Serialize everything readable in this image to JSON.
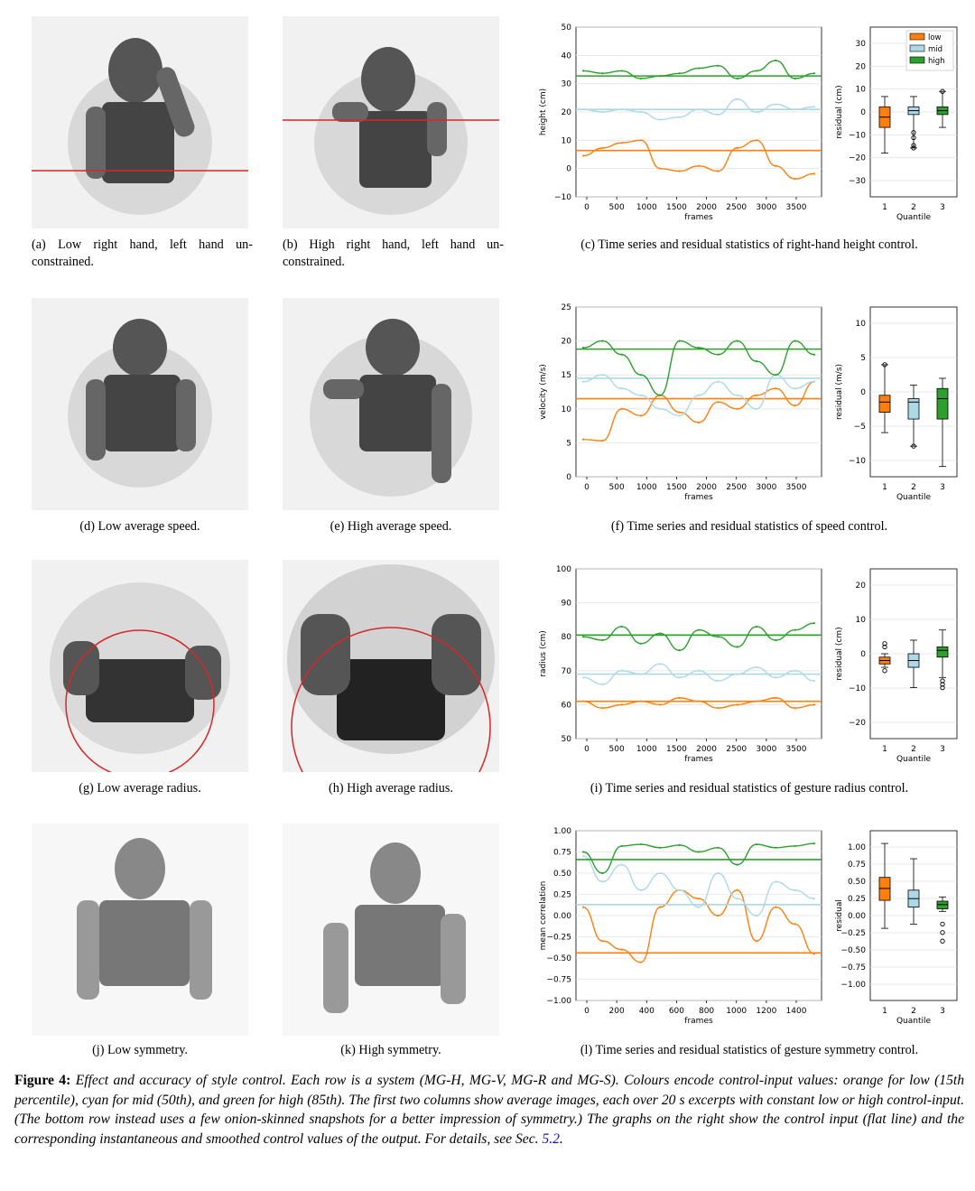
{
  "colors": {
    "low": "#ff7f0e",
    "mid": "#add8e6",
    "high": "#2ca02c",
    "red_line": "#d62728"
  },
  "rows": [
    {
      "cap_a": "(a)  Low right hand, left hand un-constrained.",
      "cap_b": "(b)  High right hand, left hand un-constrained.",
      "cap_c": "(c)  Time series and residual statistics of right-hand height control.",
      "ts_ylabel": "height (cm)",
      "ts_xlabel": "frames",
      "ts_yticks": [
        "50",
        "40",
        "30",
        "20",
        "10",
        "0",
        "−10"
      ],
      "ts_xticks": [
        "0",
        "500",
        "1000",
        "1500",
        "2000",
        "2500",
        "3000",
        "3500"
      ],
      "box_ylabel": "residual (cm)",
      "box_xlabel": "Quantile",
      "box_yticks": [
        "30",
        "20",
        "10",
        "0",
        "−10",
        "−20",
        "−30"
      ],
      "box_xticks": [
        "1",
        "2",
        "3"
      ],
      "legend": [
        "low",
        "mid",
        "high"
      ]
    },
    {
      "cap_a": "(d)  Low average speed.",
      "cap_b": "(e)  High average speed.",
      "cap_c": "(f)  Time series and residual statistics of speed control.",
      "ts_ylabel": "velocity (m/s)",
      "ts_xlabel": "frames",
      "ts_yticks": [
        "25",
        "20",
        "15",
        "10",
        "5",
        "0"
      ],
      "ts_xticks": [
        "0",
        "500",
        "1000",
        "1500",
        "2000",
        "2500",
        "3000",
        "3500"
      ],
      "box_ylabel": "residual (m/s)",
      "box_xlabel": "Quantile",
      "box_yticks": [
        "10",
        "5",
        "0",
        "−5",
        "−10"
      ],
      "box_xticks": [
        "1",
        "2",
        "3"
      ]
    },
    {
      "cap_a": "(g)  Low average radius.",
      "cap_b": "(h)  High average radius.",
      "cap_c": "(i)  Time series and residual statistics of gesture radius control.",
      "ts_ylabel": "radius (cm)",
      "ts_xlabel": "frames",
      "ts_yticks": [
        "100",
        "90",
        "80",
        "70",
        "60",
        "50"
      ],
      "ts_xticks": [
        "0",
        "500",
        "1000",
        "1500",
        "2000",
        "2500",
        "3000",
        "3500"
      ],
      "box_ylabel": "residual (cm)",
      "box_xlabel": "Quantile",
      "box_yticks": [
        "20",
        "10",
        "0",
        "−10",
        "−20"
      ],
      "box_xticks": [
        "1",
        "2",
        "3"
      ]
    },
    {
      "cap_a": "(j)  Low symmetry.",
      "cap_b": "(k)  High symmetry.",
      "cap_c": "(l)  Time series and residual statistics of gesture symmetry control.",
      "ts_ylabel": "mean correlation",
      "ts_xlabel": "frames",
      "ts_yticks": [
        "1.00",
        "0.75",
        "0.50",
        "0.25",
        "0.00",
        "−0.25",
        "−0.50",
        "−0.75",
        "−1.00"
      ],
      "ts_xticks": [
        "0",
        "200",
        "400",
        "600",
        "800",
        "1000",
        "1200",
        "1400"
      ],
      "box_ylabel": "residual",
      "box_xlabel": "Quantile",
      "box_yticks": [
        "1.00",
        "0.75",
        "0.50",
        "0.25",
        "0.00",
        "−0.25",
        "−0.50",
        "−0.75",
        "−1.00"
      ],
      "box_xticks": [
        "1",
        "2",
        "3"
      ]
    }
  ],
  "chart_data": [
    {
      "type": "line",
      "panel": "c",
      "xlabel": "frames",
      "ylabel": "height (cm)",
      "ylim": [
        -13,
        53
      ],
      "xlim": [
        -150,
        3850
      ],
      "series": [
        {
          "name": "low",
          "target": 5,
          "values": [
            3,
            6,
            8,
            9,
            -2,
            -3,
            -1,
            -3,
            6,
            9,
            -1,
            -6,
            -4
          ]
        },
        {
          "name": "mid",
          "target": 21,
          "values": [
            21,
            20,
            21,
            20,
            17,
            18,
            21,
            19,
            25,
            20,
            23,
            21,
            22
          ]
        },
        {
          "name": "high",
          "target": 34,
          "values": [
            36,
            35,
            36,
            33,
            34,
            35,
            37,
            38,
            33,
            36,
            40,
            33,
            35
          ]
        }
      ]
    },
    {
      "type": "box",
      "panel": "c",
      "ylabel": "residual (cm)",
      "ylim": [
        -33,
        33
      ],
      "boxes": [
        {
          "q": 1,
          "min": -16,
          "q1": -6,
          "median": -2,
          "q3": 2,
          "max": 6
        },
        {
          "q": 2,
          "min": -14,
          "q1": -1,
          "median": 0.5,
          "q3": 2,
          "max": 6,
          "outliers": [
            -8,
            -10,
            -13,
            -14
          ]
        },
        {
          "q": 3,
          "min": -6,
          "q1": -1,
          "median": 0.5,
          "q3": 2,
          "max": 8,
          "outliers": [
            8
          ]
        }
      ]
    },
    {
      "type": "line",
      "panel": "f",
      "xlabel": "frames",
      "ylabel": "velocity (m/s)",
      "ylim": [
        0,
        25
      ],
      "xlim": [
        -150,
        3850
      ],
      "series": [
        {
          "name": "low",
          "target": 11.5,
          "values": [
            5.5,
            5.3,
            10,
            9,
            12,
            9.5,
            8,
            11,
            10,
            12,
            13,
            10.5,
            14
          ]
        },
        {
          "name": "mid",
          "target": 14.5,
          "values": [
            14,
            15,
            13,
            12,
            10,
            9,
            12,
            14,
            12,
            10,
            15,
            13,
            14
          ]
        },
        {
          "name": "high",
          "target": 18.8,
          "values": [
            19,
            20,
            18,
            15,
            12,
            20,
            19,
            18,
            20,
            17,
            15,
            20,
            18
          ]
        }
      ]
    },
    {
      "type": "box",
      "panel": "f",
      "ylabel": "residual (m/s)",
      "ylim": [
        -12.5,
        12.5
      ],
      "boxes": [
        {
          "q": 1,
          "min": -6,
          "q1": -3,
          "median": -1.5,
          "q3": -0.5,
          "max": 4,
          "outliers": [
            4
          ]
        },
        {
          "q": 2,
          "min": -8,
          "q1": -4,
          "median": -1.5,
          "q3": -1,
          "max": 1,
          "outliers": [
            -8
          ]
        },
        {
          "q": 3,
          "min": -11,
          "q1": -4,
          "median": -1,
          "q3": 0.5,
          "max": 2
        }
      ]
    },
    {
      "type": "line",
      "panel": "i",
      "xlabel": "frames",
      "ylabel": "radius (cm)",
      "ylim": [
        50,
        100
      ],
      "xlim": [
        -150,
        3850
      ],
      "series": [
        {
          "name": "low",
          "target": 61,
          "values": [
            61,
            59,
            60,
            61,
            60,
            62,
            61,
            59,
            60,
            61,
            62,
            59,
            60
          ]
        },
        {
          "name": "mid",
          "target": 69,
          "values": [
            68,
            66,
            70,
            69,
            72,
            68,
            70,
            67,
            69,
            71,
            68,
            70,
            67
          ]
        },
        {
          "name": "high",
          "target": 80.5,
          "values": [
            80,
            79,
            83,
            78,
            81,
            76,
            82,
            80,
            77,
            83,
            79,
            82,
            84
          ]
        }
      ]
    },
    {
      "type": "box",
      "panel": "i",
      "ylabel": "residual (cm)",
      "ylim": [
        -25,
        25
      ],
      "boxes": [
        {
          "q": 1,
          "min": -4,
          "q1": -3,
          "median": -2,
          "q3": -1,
          "max": 0,
          "outliers": [
            2,
            3,
            -5
          ]
        },
        {
          "q": 2,
          "min": -10,
          "q1": -4,
          "median": -2,
          "q3": 0,
          "max": 4
        },
        {
          "q": 3,
          "min": -7,
          "q1": -1,
          "median": 1,
          "q3": 2,
          "max": 7,
          "outliers": [
            -8,
            -9,
            -10
          ]
        }
      ]
    },
    {
      "type": "line",
      "panel": "l",
      "xlabel": "frames",
      "ylabel": "mean correlation",
      "ylim": [
        -1,
        1
      ],
      "xlim": [
        -60,
        1470
      ],
      "series": [
        {
          "name": "low",
          "target": -0.44,
          "values": [
            0.1,
            -0.3,
            -0.4,
            -0.55,
            0.1,
            0.3,
            0.2,
            0.0,
            0.3,
            -0.3,
            0.1,
            -0.1,
            -0.45
          ]
        },
        {
          "name": "mid",
          "target": 0.13,
          "values": [
            0.7,
            0.4,
            0.6,
            0.3,
            0.5,
            0.3,
            0.1,
            0.5,
            0.2,
            0.0,
            0.4,
            0.3,
            0.2
          ]
        },
        {
          "name": "high",
          "target": 0.66,
          "values": [
            0.75,
            0.5,
            0.82,
            0.84,
            0.8,
            0.83,
            0.75,
            0.8,
            0.6,
            0.84,
            0.8,
            0.82,
            0.85
          ]
        }
      ]
    },
    {
      "type": "box",
      "panel": "l",
      "ylabel": "residual",
      "ylim": [
        -1,
        1
      ],
      "boxes": [
        {
          "q": 1,
          "min": -0.15,
          "q1": 0.18,
          "median": 0.32,
          "q3": 0.45,
          "max": 0.85
        },
        {
          "q": 2,
          "min": -0.1,
          "q1": 0.1,
          "median": 0.2,
          "q3": 0.3,
          "max": 0.67
        },
        {
          "q": 3,
          "min": 0.05,
          "q1": 0.08,
          "median": 0.13,
          "q3": 0.17,
          "max": 0.22,
          "outliers": [
            -0.1,
            -0.2,
            -0.3
          ]
        }
      ]
    }
  ],
  "figure_caption": {
    "label": "Figure 4:",
    "body": "Effect and accuracy of style control. Each row is a system (MG-H, MG-V, MG-R and MG-S). Colours encode control-input values: orange for low (15th percentile), cyan for mid (50th), and green for high (85th). The first two columns show average images, each over 20 s excerpts with constant low or high control-input. (The bottom row instead uses a few onion-skinned snapshots for a better impression of symmetry.) The graphs on the right show the control input (flat line) and the corresponding instantaneous and smoothed control values of the output. For details, see Sec. ",
    "ref": "5.2",
    "end": "."
  }
}
